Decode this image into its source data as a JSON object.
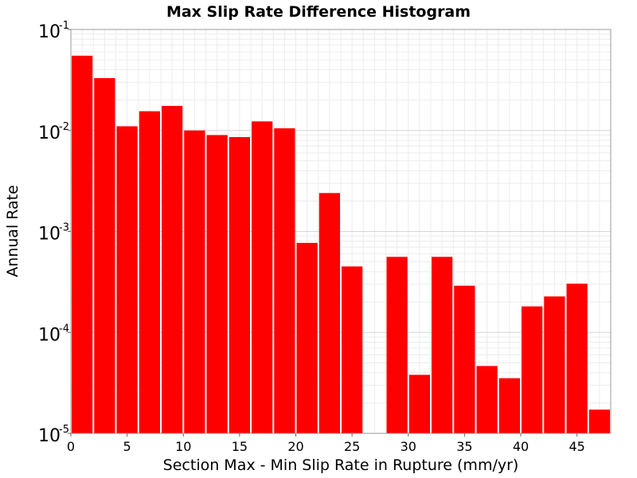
{
  "chart_data": {
    "type": "bar",
    "title": "Max Slip Rate Difference Histogram",
    "xlabel": "Section Max - Min Slip Rate in Rupture (mm/yr)",
    "ylabel": "Annual Rate",
    "xlim": [
      0,
      48
    ],
    "ylim": [
      1e-05,
      0.1
    ],
    "yscale": "log",
    "bin_width": 2,
    "bar_color": "#ff0000",
    "grid": true,
    "x_ticks": [
      0,
      5,
      10,
      15,
      20,
      25,
      30,
      35,
      40,
      45
    ],
    "y_ticks": [
      {
        "base": "10",
        "exp": "-5",
        "value": 1e-05
      },
      {
        "base": "10",
        "exp": "-4",
        "value": 0.0001
      },
      {
        "base": "10",
        "exp": "-3",
        "value": 0.001
      },
      {
        "base": "10",
        "exp": "-2",
        "value": 0.01
      },
      {
        "base": "10",
        "exp": "-1",
        "value": 0.1
      }
    ],
    "bars": [
      {
        "x": 1,
        "value": 0.055
      },
      {
        "x": 3,
        "value": 0.033
      },
      {
        "x": 5,
        "value": 0.011
      },
      {
        "x": 7,
        "value": 0.0155
      },
      {
        "x": 9,
        "value": 0.0175
      },
      {
        "x": 11,
        "value": 0.01
      },
      {
        "x": 13,
        "value": 0.009
      },
      {
        "x": 15,
        "value": 0.0086
      },
      {
        "x": 17,
        "value": 0.0123
      },
      {
        "x": 19,
        "value": 0.0105
      },
      {
        "x": 21,
        "value": 0.00077
      },
      {
        "x": 23,
        "value": 0.0024
      },
      {
        "x": 25,
        "value": 0.00045
      },
      {
        "x": 29,
        "value": 0.00056
      },
      {
        "x": 31,
        "value": 3.8e-05
      },
      {
        "x": 33,
        "value": 0.00056
      },
      {
        "x": 35,
        "value": 0.00029
      },
      {
        "x": 37,
        "value": 4.65e-05
      },
      {
        "x": 39,
        "value": 3.52e-05
      },
      {
        "x": 41,
        "value": 0.000181
      },
      {
        "x": 43,
        "value": 0.000227
      },
      {
        "x": 45,
        "value": 0.000304
      },
      {
        "x": 47,
        "value": 1.72e-05
      }
    ]
  }
}
